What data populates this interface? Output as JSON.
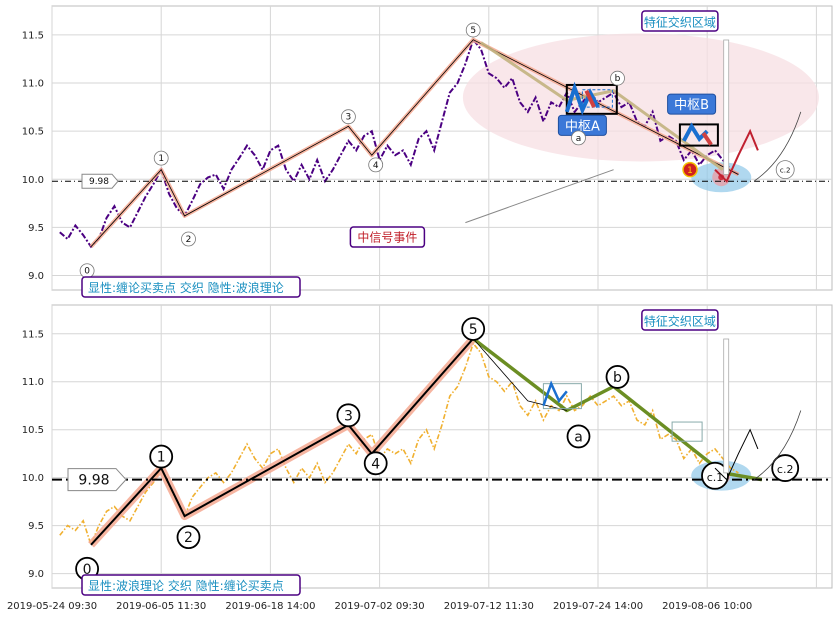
{
  "colors": {
    "grid": "#d6d6d6",
    "price_top": "#4b0082",
    "price_bottom": "#f0b030",
    "wave_fill": "#f4a890",
    "wave_line": "#000000",
    "zone_ellipse": "#f7dfe3",
    "zone_blue": "#8ec8e8",
    "pivot_line": "#1a6fd0",
    "pivot_label_bg": "#3b78d8",
    "bottom_down_wave": "#6b8e23",
    "tan_line": "#c2b280",
    "annotation_border": "#4b0082",
    "annotation_text": "#1a8fc0",
    "signal_text": "#c0202a"
  },
  "chart_data": [
    {
      "type": "line",
      "panel": "top",
      "ylim": [
        8.85,
        11.8
      ],
      "yticks": [
        "9.0",
        "9.5",
        "10.0",
        "10.5",
        "11.0",
        "11.5"
      ],
      "x_range": [
        0,
        100
      ],
      "series": [
        {
          "values": [
            [
              1,
              9.45
            ],
            [
              2,
              9.38
            ],
            [
              3,
              9.52
            ],
            [
              4,
              9.42
            ],
            [
              5,
              9.3
            ],
            [
              6,
              9.38
            ],
            [
              7,
              9.6
            ],
            [
              8,
              9.72
            ],
            [
              9,
              9.55
            ],
            [
              10,
              9.5
            ],
            [
              11,
              9.66
            ],
            [
              12,
              9.82
            ],
            [
              13,
              9.95
            ],
            [
              14,
              10.1
            ],
            [
              15,
              9.85
            ],
            [
              16,
              9.7
            ],
            [
              17,
              9.62
            ],
            [
              18,
              9.78
            ],
            [
              19,
              9.95
            ],
            [
              20,
              10.02
            ],
            [
              21,
              10.05
            ],
            [
              22,
              9.9
            ],
            [
              23,
              10.1
            ],
            [
              24,
              10.22
            ],
            [
              25,
              10.35
            ],
            [
              26,
              10.25
            ],
            [
              27,
              10.1
            ],
            [
              28,
              10.3
            ],
            [
              29,
              10.35
            ],
            [
              30,
              10.1
            ],
            [
              31,
              9.98
            ],
            [
              32,
              10.15
            ],
            [
              33,
              10.0
            ],
            [
              34,
              10.2
            ],
            [
              35,
              9.98
            ],
            [
              36,
              10.1
            ],
            [
              37,
              10.25
            ],
            [
              38,
              10.4
            ],
            [
              39,
              10.3
            ],
            [
              40,
              10.45
            ],
            [
              41,
              10.5
            ],
            [
              42,
              10.2
            ],
            [
              43,
              10.35
            ],
            [
              44,
              10.25
            ],
            [
              45,
              10.3
            ],
            [
              46,
              10.15
            ],
            [
              47,
              10.42
            ],
            [
              48,
              10.5
            ],
            [
              49,
              10.3
            ],
            [
              50,
              10.6
            ],
            [
              51,
              10.9
            ],
            [
              52,
              11.0
            ],
            [
              53,
              11.2
            ],
            [
              54,
              11.45
            ],
            [
              55,
              11.35
            ],
            [
              56,
              11.1
            ],
            [
              57,
              11.05
            ],
            [
              58,
              10.95
            ],
            [
              59,
              11.05
            ],
            [
              60,
              10.8
            ],
            [
              61,
              10.7
            ],
            [
              62,
              10.85
            ],
            [
              63,
              10.6
            ],
            [
              64,
              10.8
            ],
            [
              65,
              10.75
            ],
            [
              66,
              10.9
            ],
            [
              67,
              10.7
            ],
            [
              68,
              10.8
            ],
            [
              69,
              10.9
            ],
            [
              70,
              10.8
            ],
            [
              71,
              10.85
            ],
            [
              72,
              10.9
            ],
            [
              73,
              10.75
            ],
            [
              74,
              10.8
            ],
            [
              75,
              10.6
            ],
            [
              76,
              10.55
            ],
            [
              77,
              10.7
            ],
            [
              78,
              10.4
            ],
            [
              79,
              10.45
            ],
            [
              80,
              10.4
            ],
            [
              81,
              10.2
            ],
            [
              82,
              10.3
            ],
            [
              83,
              10.15
            ],
            [
              84,
              10.25
            ],
            [
              85,
              10.3
            ],
            [
              86,
              10.2
            ],
            [
              87,
              10.1
            ],
            [
              88,
              10.05
            ]
          ]
        }
      ],
      "wave_points": [
        [
          5,
          9.3
        ],
        [
          14,
          10.1
        ],
        [
          17,
          9.62
        ],
        [
          38,
          10.55
        ],
        [
          41,
          10.25
        ],
        [
          54,
          11.45
        ],
        [
          88,
          10.05
        ]
      ],
      "wave_labels": [
        {
          "text": "0",
          "x": 4.5,
          "y": 9.05
        },
        {
          "text": "1",
          "x": 14,
          "y": 10.22
        },
        {
          "text": "2",
          "x": 17.5,
          "y": 9.38
        },
        {
          "text": "3",
          "x": 38,
          "y": 10.65
        },
        {
          "text": "4",
          "x": 41.5,
          "y": 10.15
        },
        {
          "text": "5",
          "x": 54,
          "y": 11.55
        },
        {
          "text": "a",
          "x": 67.5,
          "y": 10.43
        },
        {
          "text": "b",
          "x": 72.5,
          "y": 11.05
        },
        {
          "text": "c.2",
          "x": 94,
          "y": 10.1
        }
      ],
      "hline": {
        "value": 9.98,
        "label": "9.98"
      },
      "pivot_labels": [
        {
          "text": "中枢A",
          "x": 68,
          "y": 10.55
        },
        {
          "text": "中枢B",
          "x": 82,
          "y": 10.77
        }
      ],
      "zone_label": "特征交织区域",
      "signal_label": "中信号事件",
      "legend_text": "显性:缠论买卖点 交织 隐性:波浪理论"
    },
    {
      "type": "line",
      "panel": "bottom",
      "ylim": [
        8.85,
        11.8
      ],
      "yticks": [
        "9.0",
        "9.5",
        "10.0",
        "10.5",
        "11.0",
        "11.5"
      ],
      "x_range": [
        0,
        100
      ],
      "series": [
        {
          "values": [
            [
              1,
              9.4
            ],
            [
              2,
              9.5
            ],
            [
              3,
              9.45
            ],
            [
              4,
              9.55
            ],
            [
              5,
              9.3
            ],
            [
              6,
              9.5
            ],
            [
              7,
              9.65
            ],
            [
              8,
              9.7
            ],
            [
              9,
              9.6
            ],
            [
              10,
              9.55
            ],
            [
              11,
              9.7
            ],
            [
              12,
              9.85
            ],
            [
              13,
              9.95
            ],
            [
              14,
              10.1
            ],
            [
              15,
              9.9
            ],
            [
              16,
              9.75
            ],
            [
              17,
              9.6
            ],
            [
              18,
              9.8
            ],
            [
              19,
              9.9
            ],
            [
              20,
              10.0
            ],
            [
              21,
              10.05
            ],
            [
              22,
              9.95
            ],
            [
              23,
              10.05
            ],
            [
              24,
              10.2
            ],
            [
              25,
              10.35
            ],
            [
              26,
              10.2
            ],
            [
              27,
              10.1
            ],
            [
              28,
              10.25
            ],
            [
              29,
              10.3
            ],
            [
              30,
              10.1
            ],
            [
              31,
              9.95
            ],
            [
              32,
              10.1
            ],
            [
              33,
              10.0
            ],
            [
              34,
              10.15
            ],
            [
              35,
              9.95
            ],
            [
              36,
              10.05
            ],
            [
              37,
              10.2
            ],
            [
              38,
              10.35
            ],
            [
              39,
              10.25
            ],
            [
              40,
              10.4
            ],
            [
              41,
              10.45
            ],
            [
              42,
              10.2
            ],
            [
              43,
              10.3
            ],
            [
              44,
              10.25
            ],
            [
              45,
              10.3
            ],
            [
              46,
              10.15
            ],
            [
              47,
              10.4
            ],
            [
              48,
              10.5
            ],
            [
              49,
              10.3
            ],
            [
              50,
              10.55
            ],
            [
              51,
              10.85
            ],
            [
              52,
              10.95
            ],
            [
              53,
              11.15
            ],
            [
              54,
              11.4
            ],
            [
              55,
              11.3
            ],
            [
              56,
              11.05
            ],
            [
              57,
              11.0
            ],
            [
              58,
              10.9
            ],
            [
              59,
              11.0
            ],
            [
              60,
              10.75
            ],
            [
              61,
              10.65
            ],
            [
              62,
              10.8
            ],
            [
              63,
              10.6
            ],
            [
              64,
              10.75
            ],
            [
              65,
              10.7
            ],
            [
              66,
              10.85
            ],
            [
              67,
              10.7
            ],
            [
              68,
              10.75
            ],
            [
              69,
              10.85
            ],
            [
              70,
              10.75
            ],
            [
              71,
              10.8
            ],
            [
              72,
              10.85
            ],
            [
              73,
              10.75
            ],
            [
              74,
              10.8
            ],
            [
              75,
              10.6
            ],
            [
              76,
              10.55
            ],
            [
              77,
              10.7
            ],
            [
              78,
              10.4
            ],
            [
              79,
              10.45
            ],
            [
              80,
              10.4
            ],
            [
              81,
              10.2
            ],
            [
              82,
              10.3
            ],
            [
              83,
              10.15
            ],
            [
              84,
              10.25
            ],
            [
              85,
              10.3
            ],
            [
              86,
              10.2
            ],
            [
              87,
              10.1
            ],
            [
              88,
              10.05
            ]
          ]
        }
      ],
      "wave_points": [
        [
          5,
          9.3
        ],
        [
          14,
          10.1
        ],
        [
          17,
          9.6
        ],
        [
          38,
          10.55
        ],
        [
          41,
          10.25
        ],
        [
          54,
          11.45
        ]
      ],
      "down_wave_points": [
        [
          54,
          11.45
        ],
        [
          66,
          10.7
        ],
        [
          72,
          10.95
        ],
        [
          86,
          10.05
        ],
        [
          91,
          9.98
        ]
      ],
      "wave_labels": [
        {
          "text": "0",
          "x": 4.5,
          "y": 9.05
        },
        {
          "text": "1",
          "x": 14,
          "y": 10.22
        },
        {
          "text": "2",
          "x": 17.5,
          "y": 9.38
        },
        {
          "text": "3",
          "x": 38,
          "y": 10.65
        },
        {
          "text": "4",
          "x": 41.5,
          "y": 10.15
        },
        {
          "text": "5",
          "x": 54,
          "y": 11.55
        },
        {
          "text": "a",
          "x": 67.5,
          "y": 10.43
        },
        {
          "text": "b",
          "x": 72.5,
          "y": 11.05
        },
        {
          "text": "c.1",
          "x": 85,
          "y": 10.02
        },
        {
          "text": "c.2",
          "x": 94,
          "y": 10.1
        }
      ],
      "hline": {
        "value": 9.98,
        "label": "9.98"
      },
      "zone_label": "特征交织区域",
      "legend_text": "显性:波浪理论 交织 隐性:缠论买卖点",
      "xticks": [
        {
          "label": "2019-05-24 09:30",
          "x": 0
        },
        {
          "label": "2019-06-05 11:30",
          "x": 14
        },
        {
          "label": "2019-06-18 14:00",
          "x": 28
        },
        {
          "label": "2019-07-02 09:30",
          "x": 42
        },
        {
          "label": "2019-07-12 11:30",
          "x": 56
        },
        {
          "label": "2019-07-24 14:00",
          "x": 70
        },
        {
          "label": "2019-08-06 10:00",
          "x": 84
        }
      ]
    }
  ]
}
